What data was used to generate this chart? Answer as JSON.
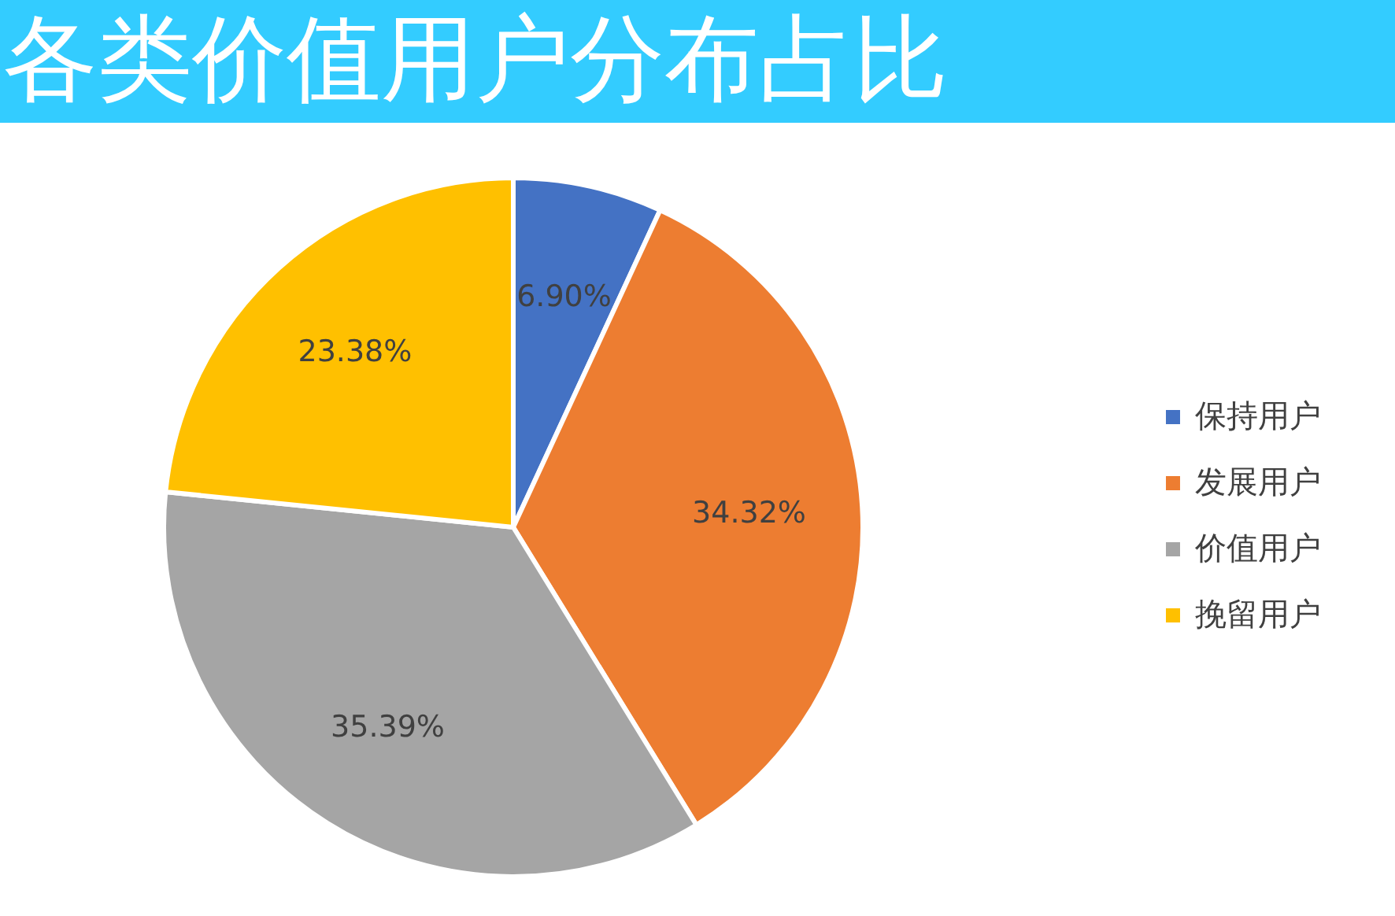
{
  "chart_data": {
    "type": "pie",
    "title": "各类价值用户分布占比",
    "categories": [
      "保持用户",
      "发展用户",
      "价值用户",
      "挽留用户"
    ],
    "values": [
      6.9,
      34.32,
      35.39,
      23.38
    ],
    "colors": [
      "#4472c4",
      "#ed7d31",
      "#a5a5a5",
      "#ffc000"
    ],
    "value_labels": [
      "6.90%",
      "34.32%",
      "35.39%",
      "23.38%"
    ],
    "legend": "right"
  }
}
